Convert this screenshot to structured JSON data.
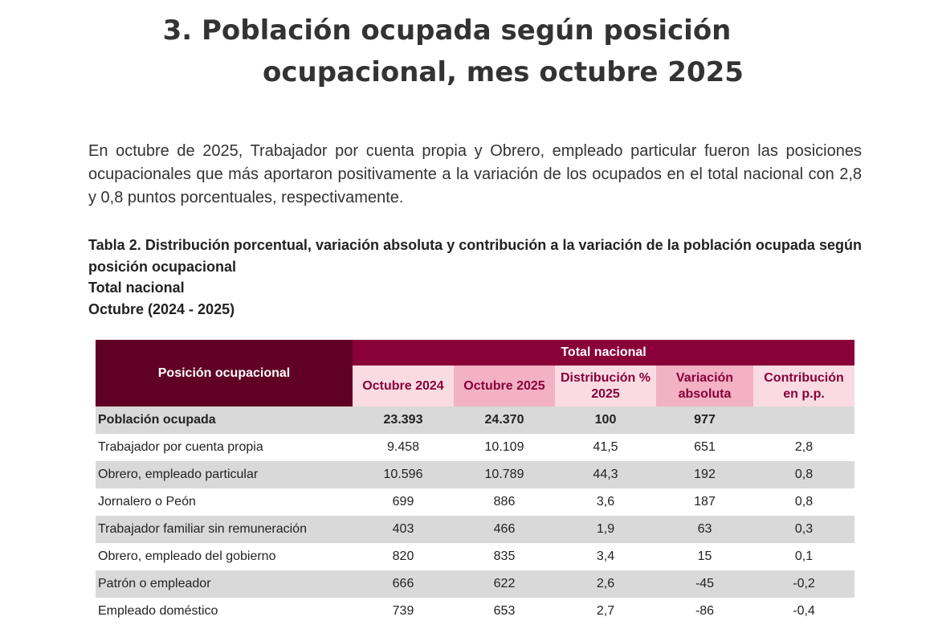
{
  "heading": {
    "line1": "3. Población ocupada según posición",
    "line2": "ocupacional, mes octubre 2025"
  },
  "paragraph": "En octubre de 2025, Trabajador por cuenta propia y Obrero, empleado particular fueron las posiciones ocupacionales que más aportaron positivamente a la variación de los ocupados en el total nacional con 2,8 y 0,8 puntos porcentuales, respectivamente.",
  "caption": {
    "title": "Tabla 2. Distribución porcentual, variación absoluta y contribución a la variación de la población ocupada según posición ocupacional",
    "scope": "Total nacional",
    "period": "Octubre (2024 - 2025)"
  },
  "table": {
    "header": {
      "position": "Posición ocupacional",
      "group": "Total nacional",
      "columns": [
        "Octubre 2024",
        "Octubre 2025",
        "Distribución % 2025",
        "Variación absoluta",
        "Contribución en p.p."
      ]
    },
    "rows": [
      {
        "label": "Población ocupada",
        "v1": "23.393",
        "v2": "24.370",
        "dist": "100",
        "var": "977",
        "contrib": ""
      },
      {
        "label": "Trabajador por cuenta propia",
        "v1": "9.458",
        "v2": "10.109",
        "dist": "41,5",
        "var": "651",
        "contrib": "2,8"
      },
      {
        "label": "Obrero, empleado particular",
        "v1": "10.596",
        "v2": "10.789",
        "dist": "44,3",
        "var": "192",
        "contrib": "0,8"
      },
      {
        "label": "Jornalero o Peón",
        "v1": "699",
        "v2": "886",
        "dist": "3,6",
        "var": "187",
        "contrib": "0,8"
      },
      {
        "label": "Trabajador familiar sin remuneración",
        "v1": "403",
        "v2": "466",
        "dist": "1,9",
        "var": "63",
        "contrib": "0,3"
      },
      {
        "label": "Obrero, empleado del gobierno",
        "v1": "820",
        "v2": "835",
        "dist": "3,4",
        "var": "15",
        "contrib": "0,1"
      },
      {
        "label": "Patrón o empleador",
        "v1": "666",
        "v2": "622",
        "dist": "2,6",
        "var": "-45",
        "contrib": "-0,2"
      },
      {
        "label": "Empleado doméstico",
        "v1": "739",
        "v2": "653",
        "dist": "2,7",
        "var": "-86",
        "contrib": "-0,4"
      }
    ]
  },
  "colors": {
    "header_dark": "#600024",
    "header_accent": "#8a0039",
    "subheader_light": "#fadbe4",
    "subheader_dark": "#f2b1c4",
    "row_shade": "#d9d9d9"
  }
}
